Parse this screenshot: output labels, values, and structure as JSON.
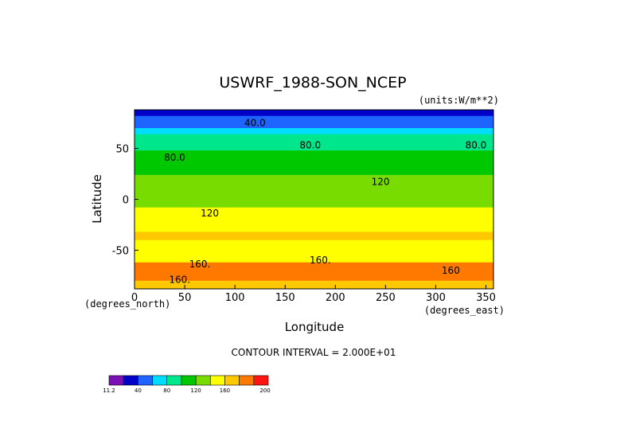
{
  "chart_data": {
    "type": "heatmap",
    "title": "USWRF_1988-SON_NCEP",
    "units_label": "(units:W/m**2)",
    "xlabel": "Longitude",
    "ylabel": "Latitude",
    "x_unit_label": "(degrees_east)",
    "y_unit_label": "(degrees_north)",
    "xlim": [
      0,
      357.5
    ],
    "ylim": [
      -88,
      88
    ],
    "x_ticks": [
      0,
      50,
      100,
      150,
      200,
      250,
      300,
      350
    ],
    "y_ticks": [
      50,
      0,
      -50
    ],
    "contour_interval_text": "CONTOUR INTERVAL = 2.000E+01",
    "colorbar": {
      "tick_labels": [
        "11.2",
        "40",
        "80",
        "120",
        "160",
        "200"
      ],
      "levels": [
        11.2,
        20,
        40,
        60,
        80,
        100,
        120,
        140,
        160,
        180,
        200,
        210
      ],
      "colors": [
        "#7b11b5",
        "#0000c8",
        "#1e64ff",
        "#00dcff",
        "#00e68c",
        "#00c800",
        "#78dc00",
        "#ffff00",
        "#ffc800",
        "#ff7800",
        "#ff1414"
      ]
    },
    "band_values": {
      "lat": [
        88,
        82,
        76,
        70,
        64,
        56,
        48,
        40,
        32,
        24,
        16,
        8,
        0,
        -8,
        -16,
        -24,
        -32,
        -40,
        -48,
        -56,
        -62,
        -68,
        -74,
        -80,
        -88
      ],
      "uswrf": [
        15,
        30,
        50,
        60,
        75,
        85,
        95,
        105,
        110,
        115,
        125,
        120,
        130,
        135,
        145,
        150,
        160,
        160,
        150,
        140,
        170,
        190,
        185,
        175,
        165
      ]
    },
    "contour_labels": [
      {
        "text": "40.0",
        "lon": 120,
        "lat": 72
      },
      {
        "text": "80.0",
        "lon": 175,
        "lat": 50
      },
      {
        "text": "80.0",
        "lon": 340,
        "lat": 50
      },
      {
        "text": "80.0",
        "lon": 40,
        "lat": 38
      },
      {
        "text": "120",
        "lon": 245,
        "lat": 14
      },
      {
        "text": "120",
        "lon": 75,
        "lat": -17
      },
      {
        "text": "160.",
        "lon": 185,
        "lat": -63
      },
      {
        "text": "160.",
        "lon": 65,
        "lat": -67
      },
      {
        "text": "160.",
        "lon": 45,
        "lat": -82
      },
      {
        "text": "160",
        "lon": 315,
        "lat": -73
      }
    ]
  }
}
